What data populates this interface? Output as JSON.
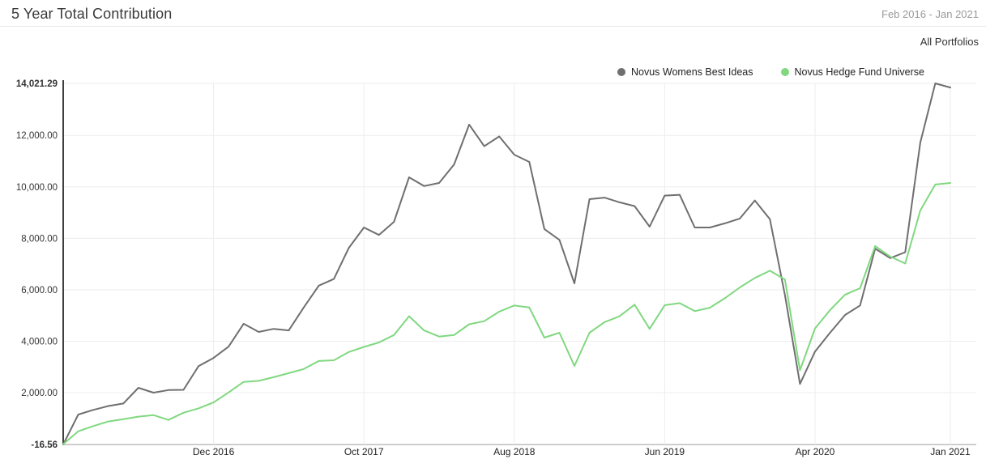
{
  "header": {
    "title": "5 Year Total Contribution",
    "period": "Feb 2016 - Jan 2021",
    "scope": "All Portfolios"
  },
  "chart_data": {
    "type": "line",
    "title": "5 Year Total Contribution",
    "xlabel": "",
    "ylabel": "",
    "grid": true,
    "legend_position": "top-right",
    "ylim": [
      -16.56,
      14021.29
    ],
    "colors": {
      "grid": "#ededed",
      "axis": "#3f3f3f",
      "baseline": "#9e9e9e",
      "tick_text": "#222222"
    },
    "x": [
      "Feb 2016",
      "Mar 2016",
      "Apr 2016",
      "May 2016",
      "Jun 2016",
      "Jul 2016",
      "Aug 2016",
      "Sep 2016",
      "Oct 2016",
      "Nov 2016",
      "Dec 2016",
      "Jan 2017",
      "Feb 2017",
      "Mar 2017",
      "Apr 2017",
      "May 2017",
      "Jun 2017",
      "Jul 2017",
      "Aug 2017",
      "Sep 2017",
      "Oct 2017",
      "Nov 2017",
      "Dec 2017",
      "Jan 2018",
      "Feb 2018",
      "Mar 2018",
      "Apr 2018",
      "May 2018",
      "Jun 2018",
      "Jul 2018",
      "Aug 2018",
      "Sep 2018",
      "Oct 2018",
      "Nov 2018",
      "Dec 2018",
      "Jan 2019",
      "Feb 2019",
      "Mar 2019",
      "Apr 2019",
      "May 2019",
      "Jun 2019",
      "Jul 2019",
      "Aug 2019",
      "Sep 2019",
      "Oct 2019",
      "Nov 2019",
      "Dec 2019",
      "Jan 2020",
      "Feb 2020",
      "Mar 2020",
      "Apr 2020",
      "May 2020",
      "Jun 2020",
      "Jul 2020",
      "Aug 2020",
      "Sep 2020",
      "Oct 2020",
      "Nov 2020",
      "Dec 2020",
      "Jan 2021"
    ],
    "series": [
      {
        "name": "Novus Womens Best Ideas",
        "color": "#6f6f6f",
        "values": [
          -16.56,
          1150,
          1330,
          1480,
          1580,
          2190,
          2000,
          2100,
          2110,
          3030,
          3350,
          3790,
          4680,
          4360,
          4480,
          4420,
          5310,
          6160,
          6420,
          7630,
          8420,
          8130,
          8640,
          10370,
          10030,
          10150,
          10870,
          12420,
          11580,
          11960,
          11250,
          10970,
          8360,
          7940,
          6250,
          9520,
          9580,
          9400,
          9250,
          8450,
          9660,
          9690,
          8420,
          8420,
          8580,
          8770,
          9470,
          8740,
          5800,
          2340,
          3600,
          4330,
          5020,
          5390,
          7600,
          7230,
          7460,
          11720,
          14021.29,
          13860
        ]
      },
      {
        "name": "Novus Hedge Fund Universe",
        "color": "#80d880",
        "values": [
          0,
          500,
          700,
          880,
          970,
          1070,
          1130,
          940,
          1220,
          1390,
          1620,
          2010,
          2420,
          2460,
          2600,
          2760,
          2920,
          3230,
          3260,
          3580,
          3780,
          3950,
          4240,
          4970,
          4420,
          4180,
          4240,
          4660,
          4780,
          5150,
          5390,
          5310,
          4140,
          4330,
          3040,
          4330,
          4740,
          4970,
          5420,
          4480,
          5400,
          5480,
          5170,
          5300,
          5670,
          6090,
          6460,
          6740,
          6400,
          2870,
          4500,
          5210,
          5810,
          6060,
          7700,
          7290,
          7020,
          9080,
          10090,
          10150
        ]
      }
    ],
    "y_ticks": [
      {
        "label": "14,021.29",
        "value": 14021.29,
        "bold": true
      },
      {
        "label": "12,000.00",
        "value": 12000,
        "bold": false
      },
      {
        "label": "10,000.00",
        "value": 10000,
        "bold": false
      },
      {
        "label": "8,000.00",
        "value": 8000,
        "bold": false
      },
      {
        "label": "6,000.00",
        "value": 6000,
        "bold": false
      },
      {
        "label": "4,000.00",
        "value": 4000,
        "bold": false
      },
      {
        "label": "2,000.00",
        "value": 2000,
        "bold": false
      },
      {
        "label": "-16.56",
        "value": -16.56,
        "bold": true
      }
    ],
    "x_ticks": [
      {
        "label": "Dec 2016",
        "index": 10
      },
      {
        "label": "Oct 2017",
        "index": 20
      },
      {
        "label": "Aug 2018",
        "index": 30
      },
      {
        "label": "Jun 2019",
        "index": 40
      },
      {
        "label": "Apr 2020",
        "index": 50
      },
      {
        "label": "Jan 2021",
        "index": 59
      }
    ]
  }
}
